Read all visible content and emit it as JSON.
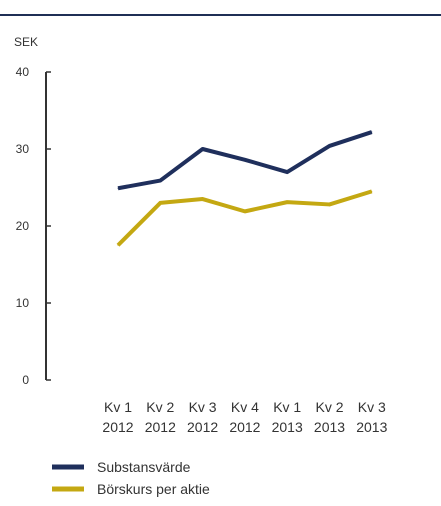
{
  "chart_data": {
    "type": "line",
    "ylabel": "SEK",
    "ylim": [
      0,
      40
    ],
    "yticks": [
      "0",
      "10",
      "20",
      "30",
      "40"
    ],
    "categories": [
      {
        "line1": "Kv 1",
        "line2": "2012"
      },
      {
        "line1": "Kv 2",
        "line2": "2012"
      },
      {
        "line1": "Kv 3",
        "line2": "2012"
      },
      {
        "line1": "Kv 4",
        "line2": "2012"
      },
      {
        "line1": "Kv 1",
        "line2": "2013"
      },
      {
        "line1": "Kv 2",
        "line2": "2013"
      },
      {
        "line1": "Kv 3",
        "line2": "2013"
      }
    ],
    "series": [
      {
        "name": "Substansvärde",
        "color": "#1f2f5c",
        "values": [
          24.9,
          25.9,
          30.0,
          28.6,
          27.0,
          30.4,
          32.2
        ]
      },
      {
        "name": "Börskurs per aktie",
        "color": "#c4a812",
        "values": [
          17.5,
          23.0,
          23.5,
          21.9,
          23.1,
          22.8,
          24.5
        ]
      }
    ],
    "legend_position": "bottom-left",
    "grid": false
  }
}
